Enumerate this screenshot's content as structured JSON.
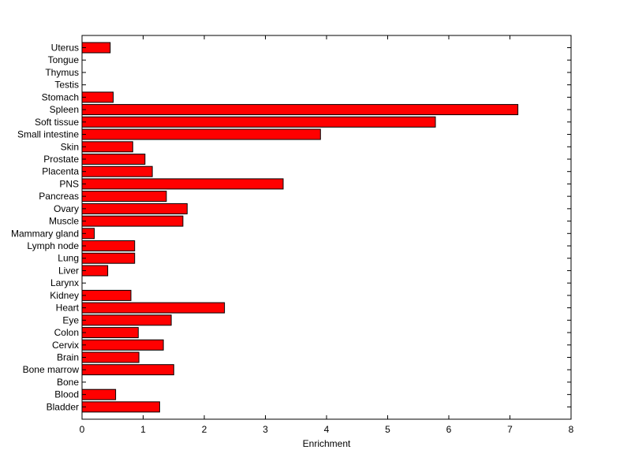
{
  "chart_data": {
    "type": "bar",
    "orientation": "horizontal",
    "categories": [
      "Uterus",
      "Tongue",
      "Thymus",
      "Testis",
      "Stomach",
      "Spleen",
      "Soft tissue",
      "Small intestine",
      "Skin",
      "Prostate",
      "Placenta",
      "PNS",
      "Pancreas",
      "Ovary",
      "Muscle",
      "Mammary gland",
      "Lymph node",
      "Lung",
      "Liver",
      "Larynx",
      "Kidney",
      "Heart",
      "Eye",
      "Colon",
      "Cervix",
      "Brain",
      "Bone marrow",
      "Bone",
      "Blood",
      "Bladder"
    ],
    "values": [
      0.46,
      0,
      0,
      0,
      0.51,
      7.13,
      5.78,
      3.9,
      0.83,
      1.03,
      1.15,
      3.29,
      1.38,
      1.72,
      1.65,
      0.2,
      0.86,
      0.86,
      0.42,
      0,
      0.8,
      2.33,
      1.46,
      0.92,
      1.33,
      0.93,
      1.5,
      0,
      0.55,
      1.27
    ],
    "xlabel": "Enrichment",
    "ylabel": "",
    "title": "",
    "xlim": [
      0,
      8
    ],
    "xticks": [
      0,
      1,
      2,
      3,
      4,
      5,
      6,
      7,
      8
    ],
    "grid": false,
    "colors": {
      "bar": "#ff0000",
      "edge": "#000000"
    }
  }
}
